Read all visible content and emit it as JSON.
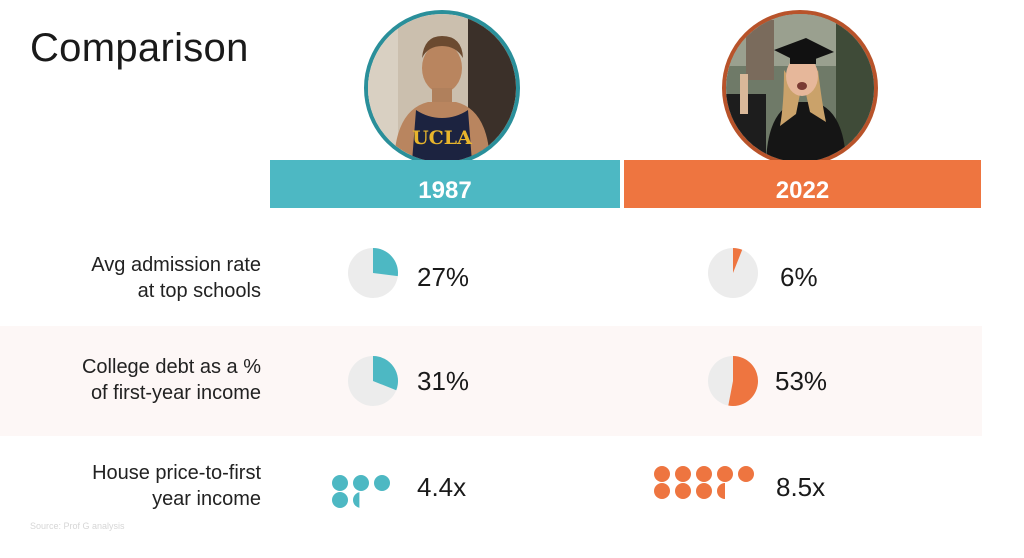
{
  "title": "Comparison",
  "columns": [
    {
      "year": "1987",
      "color": "#4db8c3"
    },
    {
      "year": "2022",
      "color": "#ee7540"
    }
  ],
  "source": "Source: Prof G analysis",
  "chart_data": {
    "type": "table",
    "rows": [
      {
        "label_lines": [
          "Avg admission rate",
          "at top schools"
        ],
        "unit": "percent",
        "values": [
          27,
          6
        ],
        "display": [
          "27%",
          "6%"
        ]
      },
      {
        "label_lines": [
          "College debt as a %",
          "of first-year income"
        ],
        "unit": "percent",
        "values": [
          31,
          53
        ],
        "display": [
          "31%",
          "53%"
        ]
      },
      {
        "label_lines": [
          "House price-to-first",
          "year income"
        ],
        "unit": "ratio",
        "values": [
          4.4,
          8.5
        ],
        "display": [
          "4.4x",
          "8.5x"
        ]
      }
    ]
  }
}
